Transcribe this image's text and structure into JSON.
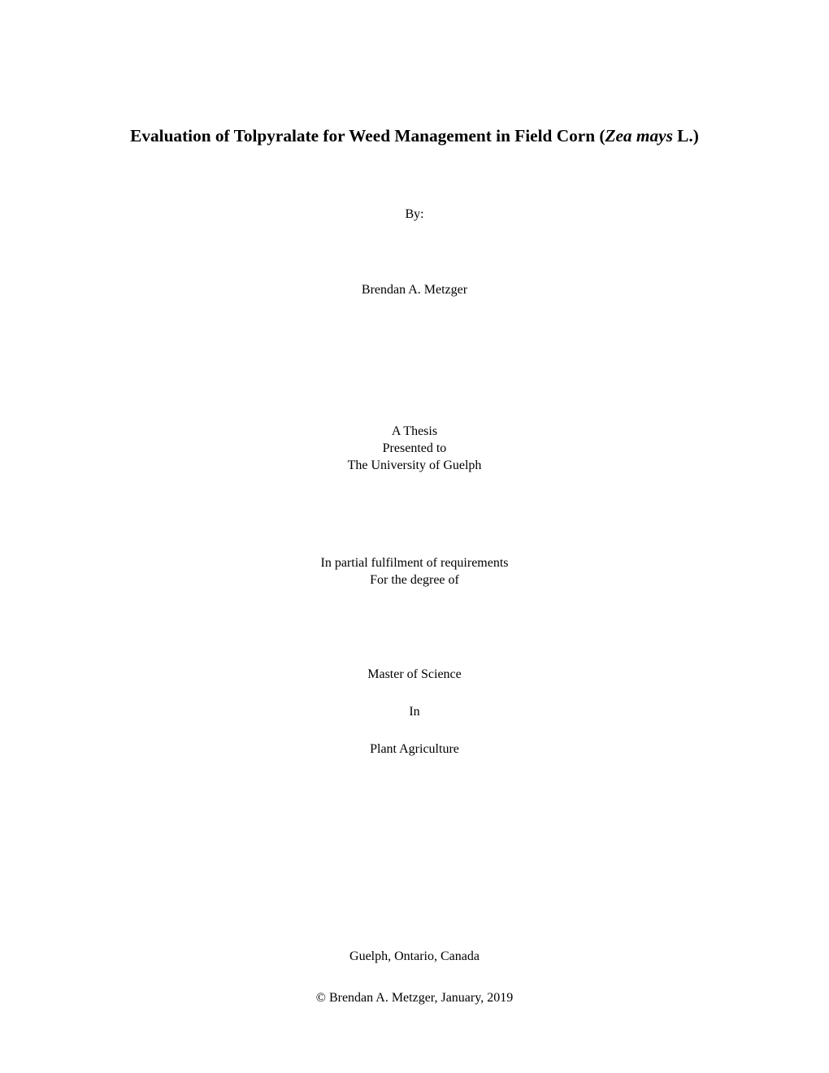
{
  "title": {
    "prefix": "Evaluation of Tolpyralate for Weed Management in Field Corn (",
    "italic": "Zea mays",
    "suffix": " L.)"
  },
  "by_label": "By:",
  "author_name": "Brendan A. Metzger",
  "presented": {
    "line1": "A Thesis",
    "line2": "Presented to",
    "line3": "The University of Guelph"
  },
  "fulfillment": {
    "line1": "In partial fulfilment of requirements",
    "line2": "For the degree of"
  },
  "degree": {
    "line1": "Master of Science",
    "line2": "In",
    "line3": "Plant Agriculture"
  },
  "location": "Guelph, Ontario, Canada",
  "copyright": "© Brendan A. Metzger, January, 2019"
}
